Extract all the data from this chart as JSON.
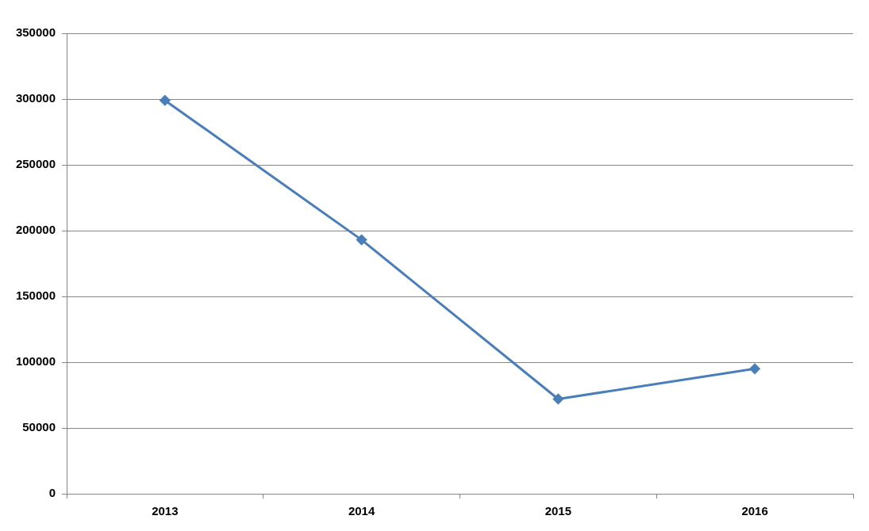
{
  "chart_data": {
    "type": "line",
    "categories": [
      "2013",
      "2014",
      "2015",
      "2016"
    ],
    "series": [
      {
        "color": "#4a7ebb",
        "values": [
          299000,
          193000,
          72000,
          95000
        ]
      }
    ],
    "ylim": [
      0,
      350000
    ],
    "yticks": [
      0,
      50000,
      100000,
      150000,
      200000,
      250000,
      300000,
      350000
    ],
    "grid": "y",
    "marker": "diamond",
    "line_style": "solid"
  }
}
